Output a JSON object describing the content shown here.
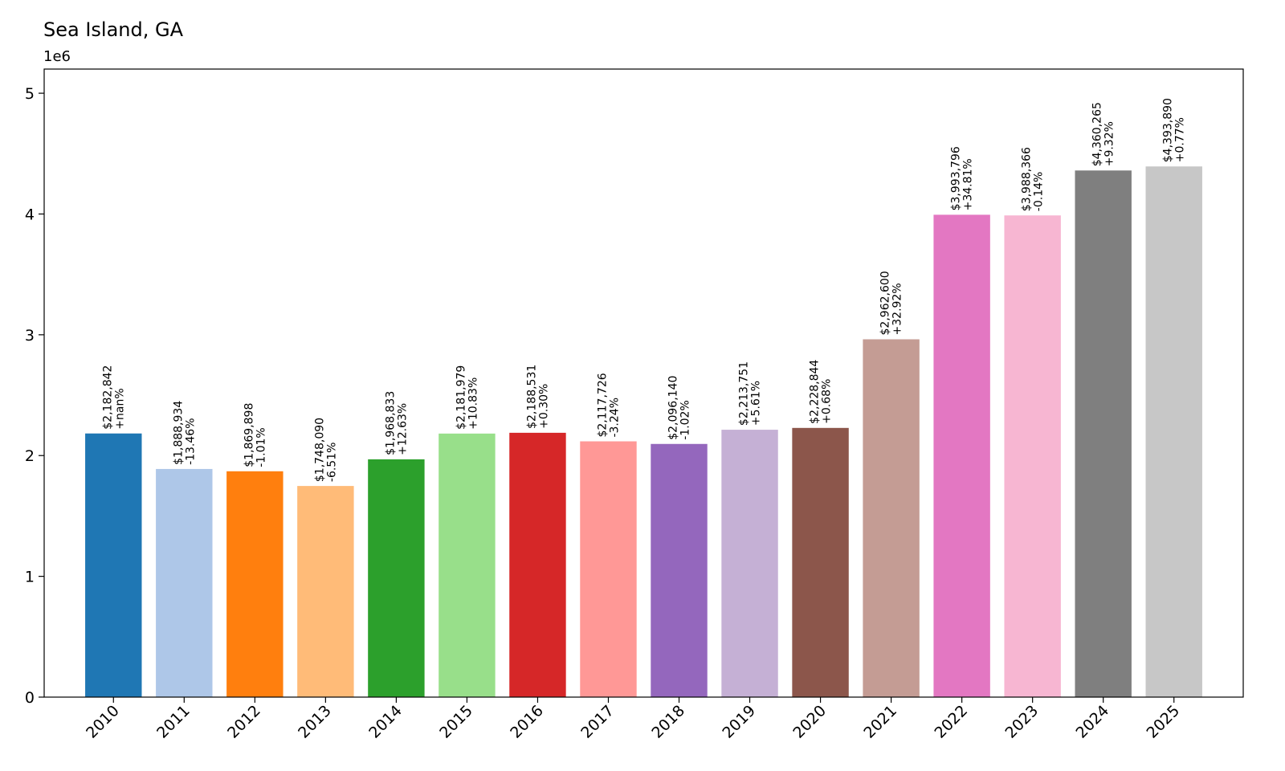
{
  "chart_data": {
    "type": "bar",
    "title": "Sea Island, GA",
    "xlabel": "",
    "ylabel": "",
    "y_offset_label": "1e6",
    "ylim": [
      0,
      5200000
    ],
    "yticks": [
      0,
      1,
      2,
      3,
      4,
      5
    ],
    "yticks_scale": 1000000,
    "grid": false,
    "categories": [
      "2010",
      "2011",
      "2012",
      "2013",
      "2014",
      "2015",
      "2016",
      "2017",
      "2018",
      "2019",
      "2020",
      "2021",
      "2022",
      "2023",
      "2024",
      "2025"
    ],
    "values": [
      2182842,
      1888934,
      1869898,
      1748090,
      1968833,
      2181979,
      2188531,
      2117726,
      2096140,
      2213751,
      2228844,
      2962600,
      3993796,
      3988366,
      4360265,
      4393890
    ],
    "value_labels": [
      "$2,182,842",
      "$1,888,934",
      "$1,869,898",
      "$1,748,090",
      "$1,968,833",
      "$2,181,979",
      "$2,188,531",
      "$2,117,726",
      "$2,096,140",
      "$2,213,751",
      "$2,228,844",
      "$2,962,600",
      "$3,993,796",
      "$3,988,366",
      "$4,360,265",
      "$4,393,890"
    ],
    "change_labels": [
      "+nan%",
      "-13.46%",
      "-1.01%",
      "-6.51%",
      "+12.63%",
      "+10.83%",
      "+0.30%",
      "-3.24%",
      "-1.02%",
      "+5.61%",
      "+0.68%",
      "+32.92%",
      "+34.81%",
      "-0.14%",
      "+9.32%",
      "+0.77%"
    ],
    "colors": [
      "#1f77b4",
      "#aec7e8",
      "#ff7f0e",
      "#ffbb78",
      "#2ca02c",
      "#98df8a",
      "#d62728",
      "#ff9896",
      "#9467bd",
      "#c5b0d5",
      "#8c564b",
      "#c49c94",
      "#e377c2",
      "#f7b6d2",
      "#7f7f7f",
      "#c7c7c7"
    ]
  }
}
